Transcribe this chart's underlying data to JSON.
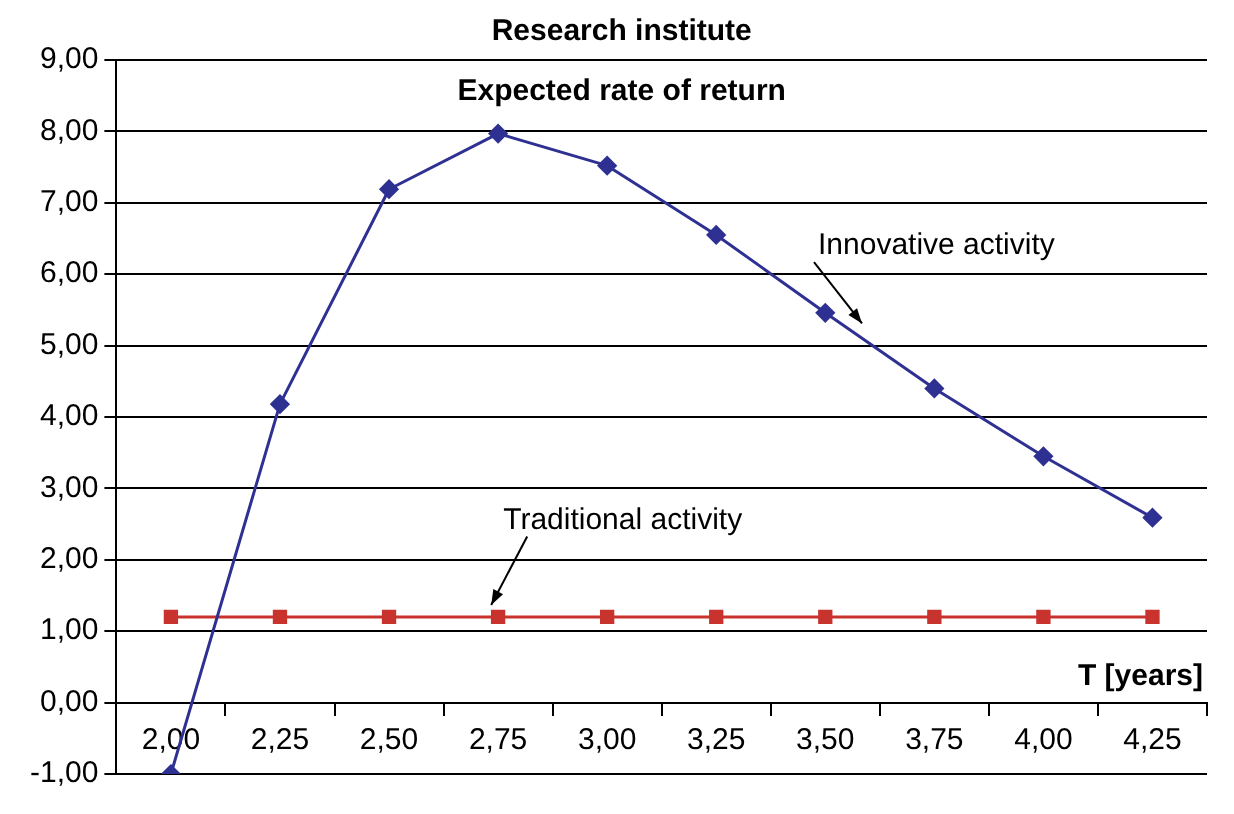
{
  "chart_data": {
    "type": "line",
    "title": "Research institute",
    "subtitle": "Expected rate of return",
    "xlabel": "T [years]",
    "categories": [
      "2,00",
      "2,25",
      "2,50",
      "2,75",
      "3,00",
      "3,25",
      "3,50",
      "3,75",
      "4,00",
      "4,25"
    ],
    "series": [
      {
        "name": "Innovative activity",
        "color": "#2e3192",
        "marker": "diamond",
        "values": [
          -1.0,
          4.18,
          7.19,
          7.97,
          7.52,
          6.55,
          5.46,
          4.4,
          3.45,
          2.59
        ]
      },
      {
        "name": "Traditional activity",
        "color": "#c8332e",
        "marker": "square",
        "values": [
          1.2,
          1.2,
          1.2,
          1.2,
          1.2,
          1.2,
          1.2,
          1.2,
          1.2,
          1.2
        ]
      }
    ],
    "ylim": [
      -1,
      9
    ],
    "yticks": [
      {
        "value": -1,
        "label": "-1,00"
      },
      {
        "value": 0,
        "label": "0,00"
      },
      {
        "value": 1,
        "label": "1,00"
      },
      {
        "value": 2,
        "label": "2,00"
      },
      {
        "value": 3,
        "label": "3,00"
      },
      {
        "value": 4,
        "label": "4,00"
      },
      {
        "value": 5,
        "label": "5,00"
      },
      {
        "value": 6,
        "label": "6,00"
      },
      {
        "value": 7,
        "label": "7,00"
      },
      {
        "value": 8,
        "label": "8,00"
      },
      {
        "value": 9,
        "label": "9,00"
      }
    ],
    "grid": "y",
    "legend": false,
    "line_style": "solid"
  }
}
